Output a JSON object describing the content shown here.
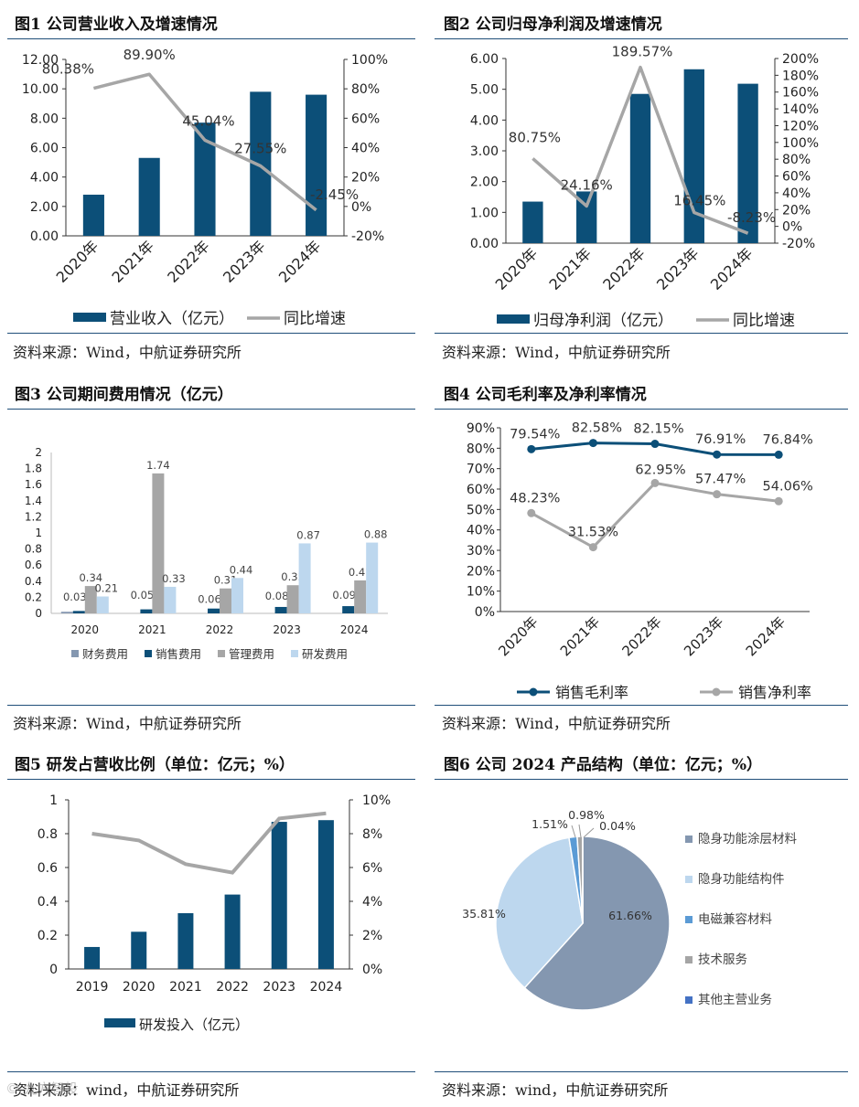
{
  "colors": {
    "navy": "#0c4f78",
    "gray": "#a6a6a6",
    "grayDark": "#8c8c8c",
    "lightblue": "#bdd7ee",
    "slate": "#8497b0",
    "pieBlue": "#5b9bd5",
    "pieGray": "#a5a5a5",
    "pieDark": "#4472c4",
    "rule": "#1f4e79"
  },
  "chart_data": [
    {
      "id": "fig1",
      "type": "bar+line",
      "title": "图1  公司营业收入及增速情况",
      "categories": [
        "2020年",
        "2021年",
        "2022年",
        "2023年",
        "2024年"
      ],
      "series": [
        {
          "name": "营业收入（亿元）",
          "axis": "left",
          "type": "bar",
          "values": [
            2.8,
            5.3,
            7.7,
            9.8,
            9.6
          ]
        },
        {
          "name": "同比增速",
          "axis": "right",
          "type": "line",
          "values": [
            80.38,
            89.9,
            45.04,
            27.55,
            -2.45
          ],
          "labels": [
            "80.38%",
            "89.90%",
            "45.04%",
            "27.55%",
            "-2.45%"
          ]
        }
      ],
      "leftAxis": {
        "min": 0,
        "max": 12,
        "step": 2,
        "ticks": [
          "0.00",
          "2.00",
          "4.00",
          "6.00",
          "8.00",
          "10.00",
          "12.00"
        ]
      },
      "rightAxis": {
        "min": -20,
        "max": 100,
        "step": 20,
        "ticks": [
          "-20%",
          "0%",
          "20%",
          "40%",
          "60%",
          "80%",
          "100%"
        ]
      },
      "legend": [
        "营业收入（亿元）",
        "同比增速"
      ],
      "source": "资料来源：Wind，中航证券研究所"
    },
    {
      "id": "fig2",
      "type": "bar+line",
      "title": "图2  公司归母净利润及增速情况",
      "categories": [
        "2020年",
        "2021年",
        "2022年",
        "2023年",
        "2024年"
      ],
      "series": [
        {
          "name": "归母净利润（亿元）",
          "axis": "left",
          "type": "bar",
          "values": [
            1.35,
            1.68,
            4.85,
            5.65,
            5.18
          ]
        },
        {
          "name": "同比增速",
          "axis": "right",
          "type": "line",
          "values": [
            80.75,
            24.16,
            189.57,
            16.45,
            -8.23
          ],
          "labels": [
            "80.75%",
            "24.16%",
            "189.57%",
            "16.45%",
            "-8.23%"
          ]
        }
      ],
      "leftAxis": {
        "min": 0,
        "max": 6,
        "step": 1,
        "ticks": [
          "0.00",
          "1.00",
          "2.00",
          "3.00",
          "4.00",
          "5.00",
          "6.00"
        ]
      },
      "rightAxis": {
        "min": -20,
        "max": 200,
        "step": 20,
        "ticks": [
          "-20%",
          "0%",
          "20%",
          "40%",
          "60%",
          "80%",
          "100%",
          "120%",
          "140%",
          "160%",
          "180%",
          "200%"
        ]
      },
      "legend": [
        "归母净利润（亿元）",
        "同比增速"
      ],
      "source": "资料来源：Wind，中航证券研究所"
    },
    {
      "id": "fig3",
      "type": "grouped-bar",
      "title": "图3  公司期间费用情况（亿元）",
      "categories": [
        "2020",
        "2021",
        "2022",
        "2023",
        "2024"
      ],
      "series": [
        {
          "name": "财务费用",
          "values": [
            0.02,
            0.0,
            0.0,
            0.0,
            0.0
          ],
          "labels": [
            "",
            "",
            "",
            "",
            ""
          ]
        },
        {
          "name": "销售费用",
          "values": [
            0.03,
            0.05,
            0.06,
            0.08,
            0.09
          ],
          "labels": [
            "0.03",
            "0.05",
            "0.06",
            "0.08",
            "0.09"
          ]
        },
        {
          "name": "管理费用",
          "values": [
            0.34,
            1.74,
            0.31,
            0.35,
            0.41
          ],
          "labels": [
            "0.34",
            "1.74",
            "0.31",
            "0.35",
            "0.41"
          ]
        },
        {
          "name": "研发费用",
          "values": [
            0.21,
            0.33,
            0.44,
            0.87,
            0.88
          ],
          "labels": [
            "0.21",
            "0.33",
            "0.44",
            "0.87",
            "0.88"
          ]
        }
      ],
      "yAxis": {
        "min": 0,
        "max": 2,
        "step": 0.2,
        "ticks": [
          "0",
          "0.2",
          "0.4",
          "0.6",
          "0.8",
          "1",
          "1.2",
          "1.4",
          "1.6",
          "1.8",
          "2"
        ]
      },
      "legend": [
        "财务费用",
        "销售费用",
        "管理费用",
        "研发费用"
      ],
      "source": "资料来源：Wind，中航证券研究所"
    },
    {
      "id": "fig4",
      "type": "line",
      "title": "图4  公司毛利率及净利率情况",
      "categories": [
        "2020年",
        "2021年",
        "2022年",
        "2023年",
        "2024年"
      ],
      "series": [
        {
          "name": "销售毛利率",
          "values": [
            79.54,
            82.58,
            82.15,
            76.91,
            76.84
          ],
          "labels": [
            "79.54%",
            "82.58%",
            "82.15%",
            "76.91%",
            "76.84%"
          ]
        },
        {
          "name": "销售净利率",
          "values": [
            48.23,
            31.53,
            62.95,
            57.47,
            54.06
          ],
          "labels": [
            "48.23%",
            "31.53%",
            "62.95%",
            "57.47%",
            "54.06%"
          ]
        }
      ],
      "yAxis": {
        "min": 0,
        "max": 90,
        "step": 10,
        "ticks": [
          "0%",
          "10%",
          "20%",
          "30%",
          "40%",
          "50%",
          "60%",
          "70%",
          "80%",
          "90%"
        ]
      },
      "legend": [
        "销售毛利率",
        "销售净利率"
      ],
      "source": "资料来源：Wind，中航证券研究所"
    },
    {
      "id": "fig5",
      "type": "bar+line",
      "title": "图5  研发占营收比例（单位：亿元；%）",
      "categories": [
        "2019",
        "2020",
        "2021",
        "2022",
        "2023",
        "2024"
      ],
      "series": [
        {
          "name": "研发投入（亿元）",
          "axis": "left",
          "type": "bar",
          "values": [
            0.13,
            0.22,
            0.33,
            0.44,
            0.87,
            0.88
          ]
        },
        {
          "name": "研发占营收比例",
          "axis": "right",
          "type": "line",
          "values": [
            8.0,
            7.6,
            6.2,
            5.7,
            8.9,
            9.2
          ]
        }
      ],
      "leftAxis": {
        "min": 0,
        "max": 1,
        "step": 0.2,
        "ticks": [
          "0",
          "0.2",
          "0.4",
          "0.6",
          "0.8",
          "1"
        ]
      },
      "rightAxis": {
        "min": 0,
        "max": 10,
        "step": 2,
        "ticks": [
          "0%",
          "2%",
          "4%",
          "6%",
          "8%",
          "10%"
        ]
      },
      "legend": [
        "研发投入（亿元）"
      ],
      "source": "资料来源：wind，中航证券研究所"
    },
    {
      "id": "fig6",
      "type": "pie",
      "title": "图6  公司 2024 产品结构（单位：亿元；%）",
      "slices": [
        {
          "name": "隐身功能涂层材料",
          "value": 61.66,
          "label": "61.66%"
        },
        {
          "name": "隐身功能结构件",
          "value": 35.81,
          "label": "35.81%"
        },
        {
          "name": "电磁兼容材料",
          "value": 1.51,
          "label": "1.51%"
        },
        {
          "name": "技术服务",
          "value": 0.98,
          "label": "0.98%"
        },
        {
          "name": "其他主营业务",
          "value": 0.04,
          "label": "0.04%"
        }
      ],
      "legend": [
        "隐身功能涂层材料",
        "隐身功能结构件",
        "电磁兼容材料",
        "技术服务",
        "其他主营业务"
      ],
      "source": "资料来源：wind，中航证券研究所"
    }
  ],
  "watermark": "© 九方智投"
}
